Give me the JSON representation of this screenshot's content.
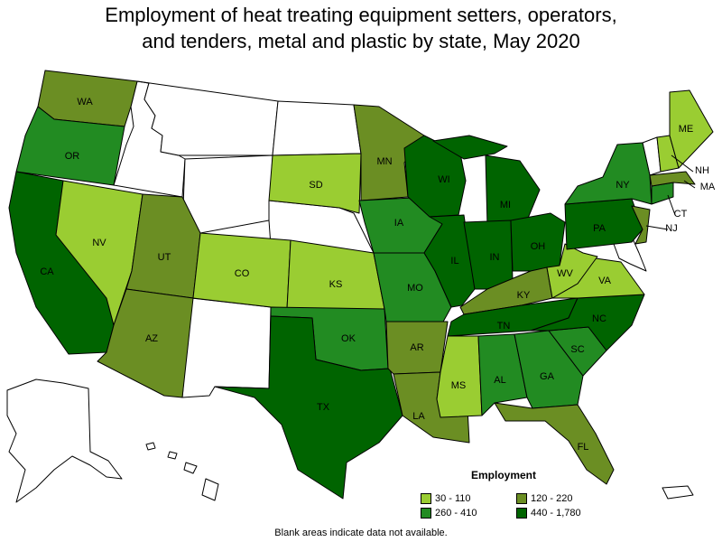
{
  "title_line1": "Employment of heat treating equipment setters, operators,",
  "title_line2": "and tenders, metal and plastic by state, May 2020",
  "legend": {
    "title": "Employment",
    "items": [
      {
        "range": "30 - 110",
        "color": "#9acd32"
      },
      {
        "range": "120 - 220",
        "color": "#6b8e23"
      },
      {
        "range": "260 - 410",
        "color": "#228b22"
      },
      {
        "range": "440 - 1,780",
        "color": "#006400"
      }
    ]
  },
  "note": "Blank areas indicate data not available.",
  "states": {
    "WA": "120 - 220",
    "OR": "260 - 410",
    "CA": "440 - 1,780",
    "NV": "30 - 110",
    "UT": "120 - 220",
    "AZ": "120 - 220",
    "CO": "30 - 110",
    "SD": "30 - 110",
    "KS": "30 - 110",
    "TX": "440 - 1,780",
    "OK": "260 - 410",
    "MN": "120 - 220",
    "IA": "260 - 410",
    "MO": "260 - 410",
    "AR": "120 - 220",
    "LA": "120 - 220",
    "WI": "440 - 1,780",
    "IL": "440 - 1,780",
    "MI": "440 - 1,780",
    "IN": "440 - 1,780",
    "OH": "440 - 1,780",
    "KY": "120 - 220",
    "TN": "440 - 1,780",
    "MS": "30 - 110",
    "AL": "260 - 410",
    "GA": "260 - 410",
    "FL": "120 - 220",
    "SC": "260 - 410",
    "NC": "440 - 1,780",
    "VA": "30 - 110",
    "WV": "30 - 110",
    "PA": "440 - 1,780",
    "NY": "260 - 410",
    "NJ": "120 - 220",
    "CT": "260 - 410",
    "MA": "120 - 220",
    "NH": "30 - 110",
    "ME": "30 - 110"
  }
}
